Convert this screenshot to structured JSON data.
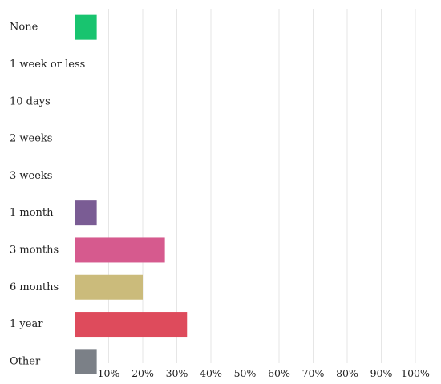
{
  "chart_data": {
    "type": "bar",
    "orientation": "horizontal",
    "categories": [
      "None",
      "1 week or less",
      "10 days",
      "2 weeks",
      "3 weeks",
      "1 month",
      "3 months",
      "6 months",
      "1 year",
      "Other"
    ],
    "values": [
      6.5,
      0,
      0,
      0,
      0,
      6.5,
      26.5,
      20,
      33,
      6.5
    ],
    "colors": [
      "#18c46f",
      null,
      null,
      null,
      null,
      "#7a5c94",
      "#d65a8e",
      "#cbbb7b",
      "#de4b5c",
      "#7b8087"
    ],
    "xlim": [
      0,
      100
    ],
    "xticks": [
      10,
      20,
      30,
      40,
      50,
      60,
      70,
      80,
      90,
      100
    ],
    "xtick_labels": [
      "10%",
      "20%",
      "30%",
      "40%",
      "50%",
      "60%",
      "70%",
      "80%",
      "90%",
      "100%"
    ],
    "grid": true,
    "title": "",
    "xlabel": "",
    "ylabel": ""
  }
}
